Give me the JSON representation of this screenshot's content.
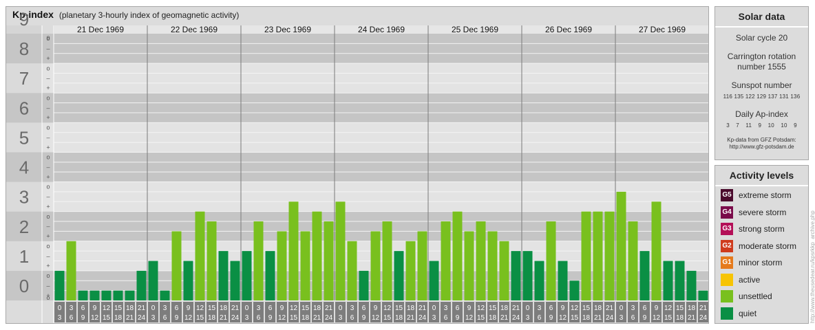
{
  "header": {
    "title": "Kp-index",
    "subtitle": "(planetary 3-hourly index of geomagnetic activity)"
  },
  "chart_data": {
    "type": "bar",
    "title": "Kp-index",
    "subtitle": "(planetary 3-hourly index of geomagnetic activity)",
    "ylim": [
      0,
      9
    ],
    "y_ticks": [
      "0",
      "1",
      "2",
      "3",
      "4",
      "5",
      "6",
      "7",
      "8",
      "9"
    ],
    "y_minor_ticks": [
      "+",
      "–",
      "o"
    ],
    "days": [
      "21 Dec 1969",
      "22 Dec 1969",
      "23 Dec 1969",
      "24 Dec 1969",
      "25 Dec 1969",
      "26 Dec 1969",
      "27 Dec 1969"
    ],
    "interval_start_labels": [
      "0",
      "3",
      "6",
      "9",
      "12",
      "15",
      "18",
      "21"
    ],
    "interval_end_labels": [
      "3",
      "6",
      "9",
      "12",
      "15",
      "18",
      "21",
      "24"
    ],
    "values": [
      [
        1.0,
        2.0,
        0.333,
        0.333,
        0.333,
        0.333,
        0.333,
        1.0
      ],
      [
        1.333,
        0.333,
        2.333,
        1.333,
        3.0,
        2.667,
        1.667,
        1.333
      ],
      [
        1.667,
        2.667,
        1.667,
        2.333,
        3.333,
        2.333,
        3.0,
        2.667
      ],
      [
        3.333,
        2.0,
        1.0,
        2.333,
        2.667,
        1.667,
        2.0,
        2.333
      ],
      [
        1.333,
        2.667,
        3.0,
        2.333,
        2.667,
        2.333,
        2.0,
        1.667
      ],
      [
        1.667,
        1.333,
        2.667,
        1.333,
        0.667,
        3.0,
        3.0,
        3.0
      ],
      [
        3.667,
        2.667,
        1.667,
        3.333,
        1.333,
        1.333,
        1.0,
        0.333
      ]
    ],
    "colors": {
      "quiet": "#0a8f44",
      "unsettled": "#79c01e",
      "active": "#f7c404",
      "minor_storm": "#e57a1c",
      "moderate_storm": "#cf3b1d",
      "strong_storm": "#b40f57",
      "severe_storm": "#7a0b4a",
      "extreme_storm": "#4a0a2c"
    }
  },
  "solar": {
    "heading": "Solar data",
    "cycle": "Solar cycle 20",
    "carrington_line1": "Carrington rotation",
    "carrington_line2": "number 1555",
    "sunspot_label": "Sunspot number",
    "sunspot_values": [
      "116",
      "135",
      "122",
      "129",
      "137",
      "131",
      "136"
    ],
    "ap_label": "Daily Ap-index",
    "ap_values": [
      "3",
      "7",
      "11",
      "9",
      "10",
      "10",
      "9"
    ],
    "credit_line1": "Kp-data from GFZ Potsdam:",
    "credit_line2": "http://www.gfz-potsdam.de"
  },
  "levels": {
    "heading": "Activity levels",
    "items": [
      {
        "badge": "G5",
        "label": "extreme storm",
        "color": "#4a0a2c"
      },
      {
        "badge": "G4",
        "label": "severe storm",
        "color": "#7a0b4a"
      },
      {
        "badge": "G3",
        "label": "strong storm",
        "color": "#b40f57"
      },
      {
        "badge": "G2",
        "label": "moderate storm",
        "color": "#cf3b1d"
      },
      {
        "badge": "G1",
        "label": "minor storm",
        "color": "#e57a1c"
      },
      {
        "badge": "",
        "label": "active",
        "color": "#f7c404"
      },
      {
        "badge": "",
        "label": "unsettled",
        "color": "#79c01e"
      },
      {
        "badge": "",
        "label": "quiet",
        "color": "#0a8f44"
      }
    ]
  },
  "watermark": "http://www.theusedear.ru/kpsrkkp_archive.php"
}
